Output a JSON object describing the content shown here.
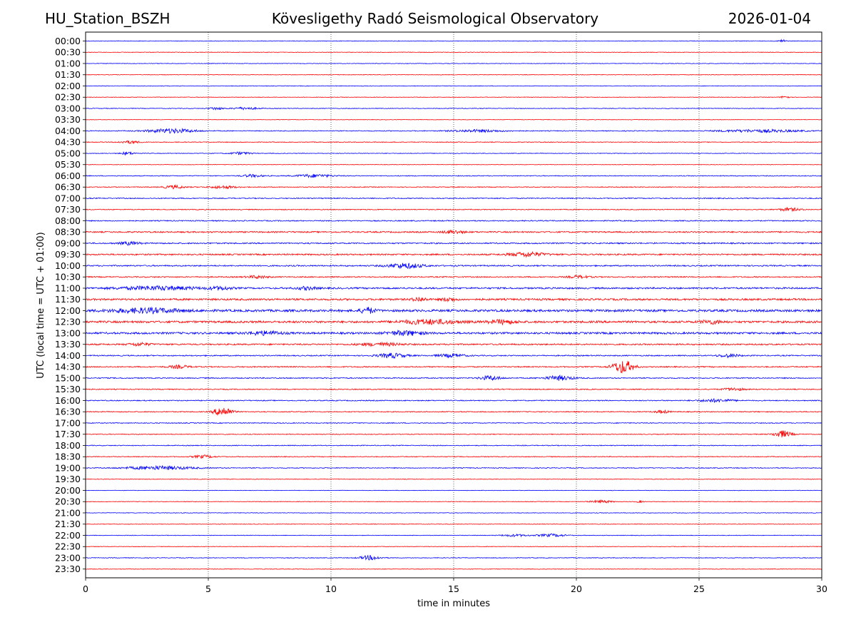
{
  "header": {
    "station": "HU_Station_BSZH",
    "observatory": "Kövesligethy Radó Seismological Observatory",
    "date": "2026-01-04"
  },
  "chart_data": {
    "type": "line",
    "title": "Kövesligethy Radó Seismological Observatory",
    "xlabel": "time in minutes",
    "ylabel": "UTC (local time = UTC + 01:00)",
    "xlim": [
      0,
      30
    ],
    "xticks": [
      "0",
      "5",
      "10",
      "15",
      "20",
      "25",
      "30"
    ],
    "gridlines_x": [
      5,
      10,
      15,
      20,
      25
    ],
    "colors": [
      "#0000ff",
      "#ff0000"
    ],
    "rows": [
      {
        "label": "00:00",
        "color": "#0000ff",
        "noise": 0.7,
        "events": [
          [
            28.4,
            2.2,
            0.1
          ]
        ]
      },
      {
        "label": "00:30",
        "color": "#ff0000",
        "noise": 0.7,
        "events": []
      },
      {
        "label": "01:00",
        "color": "#0000ff",
        "noise": 0.7,
        "events": []
      },
      {
        "label": "01:30",
        "color": "#ff0000",
        "noise": 0.7,
        "events": []
      },
      {
        "label": "02:00",
        "color": "#0000ff",
        "noise": 0.7,
        "events": []
      },
      {
        "label": "02:30",
        "color": "#ff0000",
        "noise": 0.7,
        "events": [
          [
            28.5,
            2.5,
            0.1
          ]
        ]
      },
      {
        "label": "03:00",
        "color": "#0000ff",
        "noise": 0.8,
        "events": [
          [
            5.3,
            1.8,
            0.2
          ],
          [
            6.5,
            1.5,
            0.4
          ]
        ]
      },
      {
        "label": "03:30",
        "color": "#ff0000",
        "noise": 0.6,
        "events": []
      },
      {
        "label": "04:00",
        "color": "#0000ff",
        "noise": 1.0,
        "events": [
          [
            3.5,
            3.0,
            0.7
          ],
          [
            16.0,
            1.6,
            0.8
          ],
          [
            27.5,
            1.8,
            1.2
          ]
        ]
      },
      {
        "label": "04:30",
        "color": "#ff0000",
        "noise": 0.9,
        "events": [
          [
            1.8,
            1.8,
            0.3
          ]
        ]
      },
      {
        "label": "05:00",
        "color": "#0000ff",
        "noise": 0.8,
        "events": [
          [
            1.7,
            2.0,
            0.2
          ],
          [
            6.3,
            1.8,
            0.3
          ]
        ]
      },
      {
        "label": "05:30",
        "color": "#ff0000",
        "noise": 0.6,
        "events": []
      },
      {
        "label": "06:00",
        "color": "#0000ff",
        "noise": 1.0,
        "events": [
          [
            6.8,
            1.8,
            0.3
          ],
          [
            9.3,
            2.2,
            0.5
          ]
        ]
      },
      {
        "label": "06:30",
        "color": "#ff0000",
        "noise": 1.0,
        "events": [
          [
            3.6,
            2.2,
            0.3
          ],
          [
            5.6,
            1.8,
            0.4
          ]
        ]
      },
      {
        "label": "07:00",
        "color": "#0000ff",
        "noise": 1.2,
        "events": []
      },
      {
        "label": "07:30",
        "color": "#ff0000",
        "noise": 1.1,
        "events": [
          [
            28.7,
            2.2,
            0.3
          ]
        ]
      },
      {
        "label": "08:00",
        "color": "#0000ff",
        "noise": 1.3,
        "events": []
      },
      {
        "label": "08:30",
        "color": "#ff0000",
        "noise": 1.7,
        "events": [
          [
            15.0,
            2.2,
            0.3
          ]
        ]
      },
      {
        "label": "09:00",
        "color": "#0000ff",
        "noise": 1.6,
        "events": [
          [
            1.8,
            2.0,
            0.3
          ]
        ]
      },
      {
        "label": "09:30",
        "color": "#ff0000",
        "noise": 1.8,
        "events": [
          [
            18.0,
            3.0,
            0.5
          ]
        ]
      },
      {
        "label": "10:00",
        "color": "#0000ff",
        "noise": 1.6,
        "events": [
          [
            13.0,
            3.5,
            0.5
          ]
        ]
      },
      {
        "label": "10:30",
        "color": "#ff0000",
        "noise": 1.4,
        "events": [
          [
            7.0,
            1.8,
            0.3
          ],
          [
            20.1,
            1.8,
            0.3
          ]
        ]
      },
      {
        "label": "11:00",
        "color": "#0000ff",
        "noise": 2.0,
        "events": [
          [
            3.0,
            2.5,
            1.2
          ],
          [
            5.5,
            2.0,
            0.3
          ],
          [
            9.0,
            2.0,
            0.3
          ]
        ]
      },
      {
        "label": "11:30",
        "color": "#ff0000",
        "noise": 2.3,
        "events": [
          [
            13.6,
            2.5,
            0.2
          ],
          [
            14.8,
            2.2,
            0.2
          ]
        ]
      },
      {
        "label": "12:00",
        "color": "#0000ff",
        "noise": 2.8,
        "events": [
          [
            2.5,
            3.0,
            1.0
          ],
          [
            11.5,
            4.0,
            0.2
          ]
        ]
      },
      {
        "label": "12:30",
        "color": "#ff0000",
        "noise": 2.6,
        "events": [
          [
            14.0,
            3.0,
            0.8
          ],
          [
            17.0,
            2.5,
            0.4
          ],
          [
            25.5,
            2.5,
            0.3
          ]
        ]
      },
      {
        "label": "13:00",
        "color": "#0000ff",
        "noise": 2.4,
        "events": [
          [
            7.3,
            2.5,
            0.5
          ],
          [
            13.0,
            3.0,
            0.5
          ]
        ]
      },
      {
        "label": "13:30",
        "color": "#ff0000",
        "noise": 1.8,
        "events": [
          [
            2.2,
            2.0,
            0.3
          ],
          [
            12.0,
            2.0,
            0.6
          ]
        ]
      },
      {
        "label": "14:00",
        "color": "#0000ff",
        "noise": 1.4,
        "events": [
          [
            12.5,
            3.2,
            0.4
          ],
          [
            14.9,
            2.2,
            0.4
          ],
          [
            26.2,
            2.2,
            0.3
          ]
        ]
      },
      {
        "label": "14:30",
        "color": "#ff0000",
        "noise": 1.4,
        "events": [
          [
            21.9,
            9.0,
            0.3
          ],
          [
            3.8,
            2.0,
            0.3
          ]
        ]
      },
      {
        "label": "15:00",
        "color": "#0000ff",
        "noise": 1.3,
        "events": [
          [
            16.5,
            3.0,
            0.3
          ],
          [
            19.3,
            3.2,
            0.4
          ]
        ]
      },
      {
        "label": "15:30",
        "color": "#ff0000",
        "noise": 1.2,
        "events": [
          [
            26.4,
            2.0,
            0.3
          ]
        ]
      },
      {
        "label": "16:00",
        "color": "#0000ff",
        "noise": 1.2,
        "events": [
          [
            25.7,
            2.0,
            0.5
          ]
        ]
      },
      {
        "label": "16:30",
        "color": "#ff0000",
        "noise": 1.2,
        "events": [
          [
            5.6,
            7.0,
            0.25
          ],
          [
            23.5,
            2.0,
            0.2
          ]
        ]
      },
      {
        "label": "17:00",
        "color": "#0000ff",
        "noise": 1.0,
        "events": []
      },
      {
        "label": "17:30",
        "color": "#ff0000",
        "noise": 1.0,
        "events": [
          [
            28.4,
            5.0,
            0.25
          ]
        ]
      },
      {
        "label": "18:00",
        "color": "#0000ff",
        "noise": 1.0,
        "events": []
      },
      {
        "label": "18:30",
        "color": "#ff0000",
        "noise": 1.0,
        "events": [
          [
            4.8,
            2.0,
            0.3
          ]
        ]
      },
      {
        "label": "19:00",
        "color": "#0000ff",
        "noise": 1.0,
        "events": [
          [
            3.0,
            2.5,
            1.0
          ]
        ]
      },
      {
        "label": "19:30",
        "color": "#ff0000",
        "noise": 0.7,
        "events": []
      },
      {
        "label": "20:00",
        "color": "#0000ff",
        "noise": 0.6,
        "events": []
      },
      {
        "label": "20:30",
        "color": "#ff0000",
        "noise": 0.7,
        "events": [
          [
            21.0,
            2.0,
            0.3
          ],
          [
            22.6,
            1.5,
            0.1
          ]
        ]
      },
      {
        "label": "21:00",
        "color": "#0000ff",
        "noise": 0.7,
        "events": []
      },
      {
        "label": "21:30",
        "color": "#ff0000",
        "noise": 0.7,
        "events": []
      },
      {
        "label": "22:00",
        "color": "#0000ff",
        "noise": 0.7,
        "events": [
          [
            19.0,
            2.0,
            0.4
          ],
          [
            17.5,
            1.5,
            0.4
          ]
        ]
      },
      {
        "label": "22:30",
        "color": "#ff0000",
        "noise": 0.7,
        "events": []
      },
      {
        "label": "23:00",
        "color": "#0000ff",
        "noise": 0.8,
        "events": [
          [
            11.6,
            3.0,
            0.3
          ]
        ]
      },
      {
        "label": "23:30",
        "color": "#ff0000",
        "noise": 0.7,
        "events": []
      }
    ]
  }
}
